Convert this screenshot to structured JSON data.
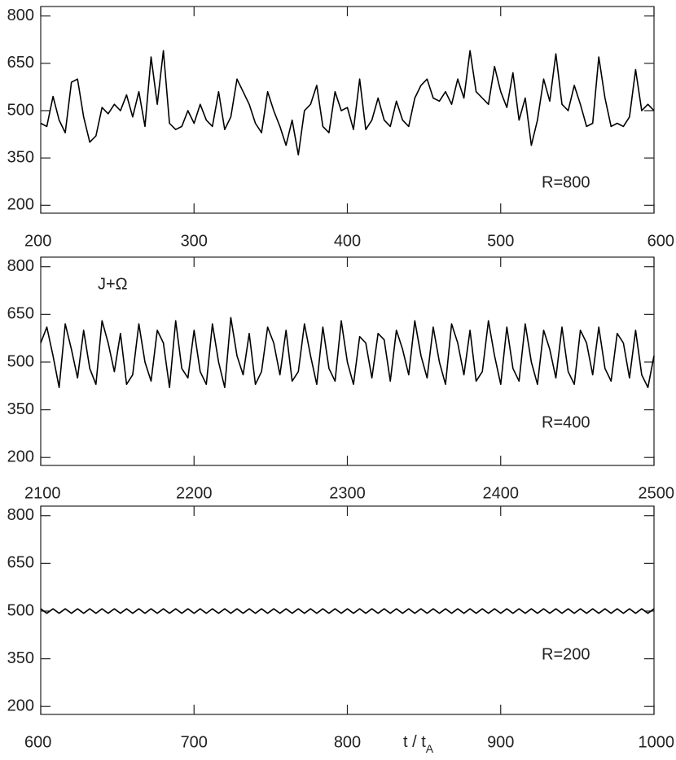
{
  "chart_data": [
    {
      "type": "line",
      "annotations": [
        "R=800"
      ],
      "xlim": [
        200,
        600
      ],
      "ylim": [
        175,
        830
      ],
      "xticks": [
        200,
        300,
        400,
        500,
        600
      ],
      "yticks": [
        200,
        350,
        500,
        650,
        800
      ],
      "color": "#000000",
      "x": [
        200,
        204,
        208,
        212,
        216,
        220,
        224,
        228,
        232,
        236,
        240,
        244,
        248,
        252,
        256,
        260,
        264,
        268,
        272,
        276,
        280,
        284,
        288,
        292,
        296,
        300,
        304,
        308,
        312,
        316,
        320,
        324,
        328,
        332,
        336,
        340,
        344,
        348,
        352,
        356,
        360,
        364,
        368,
        372,
        376,
        380,
        384,
        388,
        392,
        396,
        400,
        404,
        408,
        412,
        416,
        420,
        424,
        428,
        432,
        436,
        440,
        444,
        448,
        452,
        456,
        460,
        464,
        468,
        472,
        476,
        480,
        484,
        488,
        492,
        496,
        500,
        504,
        508,
        512,
        516,
        520,
        524,
        528,
        532,
        536,
        540,
        544,
        548,
        552,
        556,
        560,
        564,
        568,
        572,
        576,
        580,
        584,
        588,
        592,
        596,
        600
      ],
      "values": [
        460,
        450,
        545,
        470,
        430,
        590,
        600,
        480,
        400,
        420,
        510,
        490,
        520,
        500,
        550,
        480,
        560,
        450,
        670,
        520,
        690,
        460,
        440,
        450,
        500,
        460,
        520,
        470,
        450,
        560,
        440,
        480,
        600,
        560,
        520,
        460,
        430,
        560,
        500,
        450,
        390,
        470,
        360,
        500,
        520,
        580,
        450,
        430,
        560,
        500,
        510,
        440,
        600,
        440,
        470,
        540,
        470,
        450,
        530,
        470,
        450,
        540,
        580,
        600,
        540,
        530,
        560,
        520,
        600,
        540,
        690,
        560,
        540,
        520,
        640,
        560,
        510,
        620,
        470,
        540,
        390,
        470,
        600,
        530,
        680,
        520,
        500,
        580,
        520,
        450,
        460,
        670,
        540,
        450,
        460,
        450,
        480,
        630,
        500,
        520,
        500
      ]
    },
    {
      "type": "line",
      "annotations": [
        "J+Ω",
        "R=400"
      ],
      "xlim": [
        2100,
        2500
      ],
      "ylim": [
        175,
        830
      ],
      "xticks": [
        2100,
        2200,
        2300,
        2400,
        2500
      ],
      "yticks": [
        200,
        350,
        500,
        650,
        800
      ],
      "color": "#000000",
      "x": [
        2100,
        2104,
        2108,
        2112,
        2116,
        2120,
        2124,
        2128,
        2132,
        2136,
        2140,
        2144,
        2148,
        2152,
        2156,
        2160,
        2164,
        2168,
        2172,
        2176,
        2180,
        2184,
        2188,
        2192,
        2196,
        2200,
        2204,
        2208,
        2212,
        2216,
        2220,
        2224,
        2228,
        2232,
        2236,
        2240,
        2244,
        2248,
        2252,
        2256,
        2260,
        2264,
        2268,
        2272,
        2276,
        2280,
        2284,
        2288,
        2292,
        2296,
        2300,
        2304,
        2308,
        2312,
        2316,
        2320,
        2324,
        2328,
        2332,
        2336,
        2340,
        2344,
        2348,
        2352,
        2356,
        2360,
        2364,
        2368,
        2372,
        2376,
        2380,
        2384,
        2388,
        2392,
        2396,
        2400,
        2404,
        2408,
        2412,
        2416,
        2420,
        2424,
        2428,
        2432,
        2436,
        2440,
        2444,
        2448,
        2452,
        2456,
        2460,
        2464,
        2468,
        2472,
        2476,
        2480,
        2484,
        2488,
        2492,
        2496,
        2500
      ],
      "values": [
        560,
        610,
        520,
        420,
        620,
        540,
        450,
        600,
        480,
        430,
        630,
        560,
        470,
        590,
        430,
        460,
        620,
        500,
        440,
        600,
        560,
        420,
        630,
        480,
        450,
        600,
        470,
        430,
        620,
        500,
        420,
        640,
        520,
        460,
        590,
        430,
        470,
        610,
        560,
        460,
        600,
        440,
        470,
        620,
        520,
        430,
        610,
        480,
        440,
        630,
        500,
        430,
        580,
        560,
        450,
        590,
        570,
        440,
        600,
        540,
        460,
        630,
        520,
        450,
        610,
        500,
        430,
        620,
        560,
        460,
        600,
        440,
        470,
        630,
        520,
        430,
        610,
        480,
        440,
        620,
        500,
        430,
        600,
        540,
        450,
        610,
        470,
        430,
        600,
        560,
        460,
        610,
        480,
        440,
        590,
        560,
        450,
        600,
        460,
        420,
        520
      ]
    },
    {
      "type": "line",
      "annotations": [
        "R=200"
      ],
      "x_label": "t / t",
      "x_label_sub": "A",
      "xlim": [
        600,
        1000
      ],
      "ylim": [
        175,
        830
      ],
      "xticks": [
        600,
        700,
        800,
        900,
        1000
      ],
      "yticks": [
        200,
        350,
        500,
        650,
        800
      ],
      "color": "#000000",
      "x": [
        600,
        604,
        608,
        612,
        616,
        620,
        624,
        628,
        632,
        636,
        640,
        644,
        648,
        652,
        656,
        660,
        664,
        668,
        672,
        676,
        680,
        684,
        688,
        692,
        696,
        700,
        704,
        708,
        712,
        716,
        720,
        724,
        728,
        732,
        736,
        740,
        744,
        748,
        752,
        756,
        760,
        764,
        768,
        772,
        776,
        780,
        784,
        788,
        792,
        796,
        800,
        804,
        808,
        812,
        816,
        820,
        824,
        828,
        832,
        836,
        840,
        844,
        848,
        852,
        856,
        860,
        864,
        868,
        872,
        876,
        880,
        884,
        888,
        892,
        896,
        900,
        904,
        908,
        912,
        916,
        920,
        924,
        928,
        932,
        936,
        940,
        944,
        948,
        952,
        956,
        960,
        964,
        968,
        972,
        976,
        980,
        984,
        988,
        992,
        996,
        1000
      ],
      "values": [
        507,
        493,
        507,
        493,
        507,
        493,
        507,
        493,
        507,
        493,
        507,
        493,
        507,
        493,
        507,
        493,
        507,
        493,
        507,
        493,
        507,
        493,
        507,
        493,
        507,
        493,
        507,
        493,
        507,
        493,
        507,
        493,
        507,
        493,
        507,
        493,
        507,
        493,
        507,
        493,
        507,
        493,
        507,
        493,
        507,
        493,
        507,
        493,
        507,
        493,
        507,
        493,
        507,
        493,
        507,
        493,
        507,
        493,
        507,
        493,
        507,
        493,
        507,
        493,
        507,
        493,
        507,
        493,
        507,
        493,
        507,
        493,
        507,
        493,
        507,
        493,
        507,
        493,
        507,
        493,
        507,
        493,
        507,
        493,
        507,
        493,
        507,
        493,
        507,
        493,
        507,
        493,
        507,
        493,
        507,
        493,
        507,
        493,
        507,
        493,
        507
      ]
    }
  ]
}
